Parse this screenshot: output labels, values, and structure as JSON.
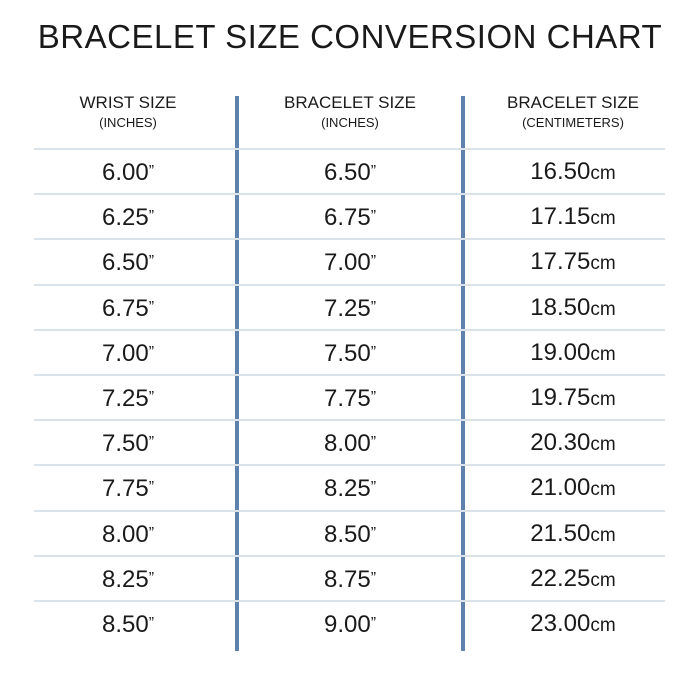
{
  "title": "BRACELET SIZE CONVERSION CHART",
  "headers": [
    {
      "label": "WRIST SIZE",
      "unit": "(INCHES)"
    },
    {
      "label": "BRACELET SIZE",
      "unit": "(INCHES)"
    },
    {
      "label": "BRACELET SIZE",
      "unit": "(CENTIMETERS)"
    }
  ],
  "inch_mark": "”",
  "cm_suffix": "cm",
  "rows": [
    {
      "wrist": "6.00",
      "bracelet_in": "6.50",
      "bracelet_cm": "16.50"
    },
    {
      "wrist": "6.25",
      "bracelet_in": "6.75",
      "bracelet_cm": "17.15"
    },
    {
      "wrist": "6.50",
      "bracelet_in": "7.00",
      "bracelet_cm": "17.75"
    },
    {
      "wrist": "6.75",
      "bracelet_in": "7.25",
      "bracelet_cm": "18.50"
    },
    {
      "wrist": "7.00",
      "bracelet_in": "7.50",
      "bracelet_cm": "19.00"
    },
    {
      "wrist": "7.25",
      "bracelet_in": "7.75",
      "bracelet_cm": "19.75"
    },
    {
      "wrist": "7.50",
      "bracelet_in": "8.00",
      "bracelet_cm": "20.30"
    },
    {
      "wrist": "7.75",
      "bracelet_in": "8.25",
      "bracelet_cm": "21.00"
    },
    {
      "wrist": "8.00",
      "bracelet_in": "8.50",
      "bracelet_cm": "21.50"
    },
    {
      "wrist": "8.25",
      "bracelet_in": "8.75",
      "bracelet_cm": "22.25"
    },
    {
      "wrist": "8.50",
      "bracelet_in": "9.00",
      "bracelet_cm": "23.00"
    }
  ],
  "colors": {
    "divider": "#5d83ac",
    "row_line": "#dbe3ea",
    "text": "#1a1a1a"
  }
}
